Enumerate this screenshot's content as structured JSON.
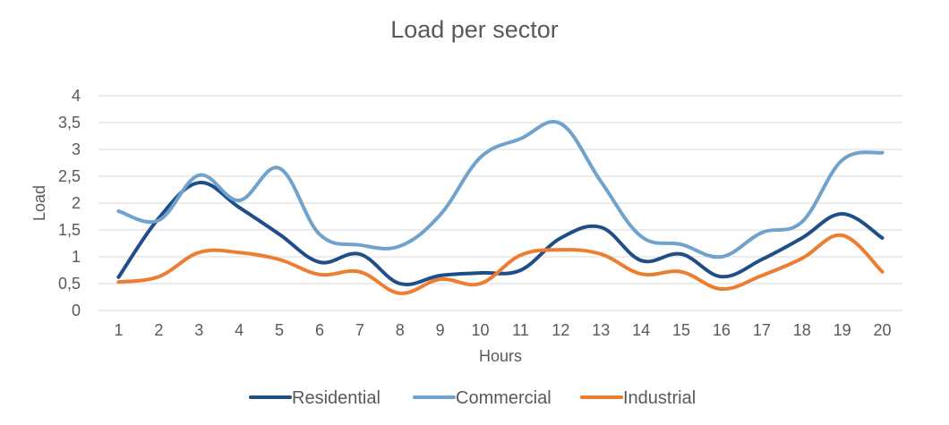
{
  "chart_data": {
    "type": "line",
    "title": "Load per sector",
    "xlabel": "Hours",
    "ylabel": "Load",
    "ylim": [
      0,
      4
    ],
    "y_ticks": [
      "0",
      "0,5",
      "1",
      "1,5",
      "2",
      "2,5",
      "3",
      "3,5",
      "4"
    ],
    "y_tick_values": [
      0,
      0.5,
      1,
      1.5,
      2,
      2.5,
      3,
      3.5,
      4
    ],
    "categories": [
      "1",
      "2",
      "3",
      "4",
      "5",
      "6",
      "7",
      "8",
      "9",
      "10",
      "11",
      "12",
      "13",
      "14",
      "15",
      "16",
      "17",
      "18",
      "19",
      "20"
    ],
    "grid": true,
    "smooth": true,
    "legend_position": "bottom",
    "series": [
      {
        "name": "Residential",
        "color": "#1f4e89",
        "values": [
          0.62,
          1.72,
          2.38,
          1.92,
          1.42,
          0.9,
          1.05,
          0.5,
          0.65,
          0.7,
          0.75,
          1.35,
          1.55,
          0.93,
          1.05,
          0.63,
          0.95,
          1.35,
          1.8,
          1.35
        ]
      },
      {
        "name": "Commercial",
        "color": "#6fa2cc",
        "values": [
          1.85,
          1.68,
          2.52,
          2.05,
          2.65,
          1.42,
          1.22,
          1.2,
          1.78,
          2.85,
          3.2,
          3.48,
          2.4,
          1.38,
          1.23,
          1.0,
          1.45,
          1.65,
          2.8,
          2.94
        ]
      },
      {
        "name": "Industrial",
        "color": "#ed7d31",
        "values": [
          0.53,
          0.63,
          1.08,
          1.08,
          0.95,
          0.67,
          0.72,
          0.32,
          0.58,
          0.5,
          1.03,
          1.13,
          1.05,
          0.68,
          0.72,
          0.4,
          0.65,
          0.97,
          1.4,
          0.72
        ]
      }
    ]
  }
}
